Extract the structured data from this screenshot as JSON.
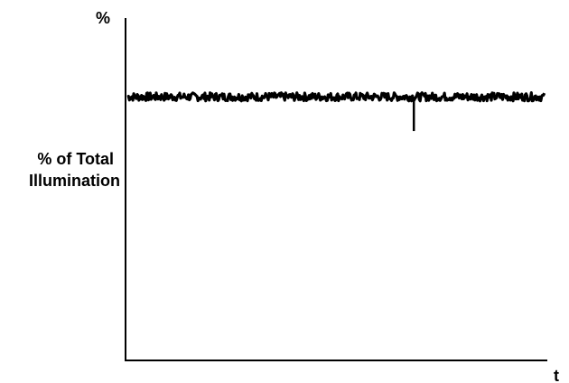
{
  "chart_data": {
    "type": "line",
    "title": "",
    "xlabel": "t",
    "ylabel": "%",
    "y_tick_labels": [
      "% of Total",
      "Illumination"
    ],
    "xlim": [
      0,
      100
    ],
    "ylim": [
      0,
      100
    ],
    "baseline": 77,
    "noise_amplitude": 1.2,
    "dip": {
      "x": 68.5,
      "y": 67
    },
    "grid": false,
    "legend": "none",
    "line_color": "#000000"
  }
}
